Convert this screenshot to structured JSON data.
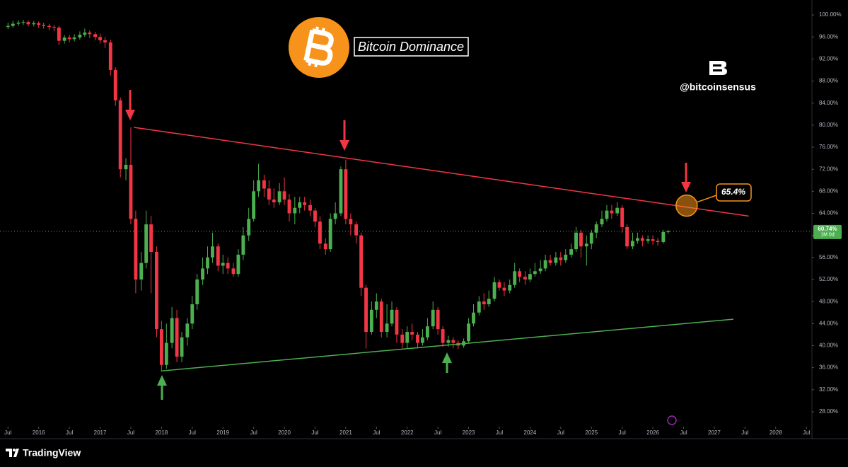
{
  "chart_data": {
    "type": "candlestick",
    "title": "Bitcoin Dominance",
    "annotations": [
      "@bitcoinsensus"
    ],
    "up_color": "#4caf50",
    "down_color": "#f23645",
    "xlim": [
      2015.37,
      2028.59
    ],
    "ylim": [
      25.3,
      102.7
    ],
    "log_scale": false,
    "grid": false,
    "xticks": [
      {
        "value": 2015.5,
        "label": "Jul"
      },
      2016,
      {
        "value": 2016.5,
        "label": "Jul"
      },
      2017,
      {
        "value": 2017.5,
        "label": "Jul"
      },
      2018,
      {
        "value": 2018.5,
        "label": "Jul"
      },
      2019,
      {
        "value": 2019.5,
        "label": "Jul"
      },
      2020,
      {
        "value": 2020.5,
        "label": "Jul"
      },
      2021,
      {
        "value": 2021.5,
        "label": "Jul"
      },
      2022,
      {
        "value": 2022.5,
        "label": "Jul"
      },
      2023,
      {
        "value": 2023.5,
        "label": "Jul"
      },
      2024,
      {
        "value": 2024.5,
        "label": "Jul"
      },
      2025,
      {
        "value": 2025.5,
        "label": "Jul"
      },
      2026,
      {
        "value": 2026.5,
        "label": "Jul"
      },
      2027,
      {
        "value": 2027.5,
        "label": "Jul"
      },
      2028,
      {
        "value": 2028.5,
        "label": "Jul"
      }
    ],
    "yticks": [
      {
        "value": 100,
        "label": "100.00%"
      },
      {
        "value": 96,
        "label": "96.00%"
      },
      {
        "value": 92,
        "label": "92.00%"
      },
      {
        "value": 88,
        "label": "88.00%"
      },
      {
        "value": 84,
        "label": "84.00%"
      },
      {
        "value": 80,
        "label": "80.00%"
      },
      {
        "value": 76,
        "label": "76.00%"
      },
      {
        "value": 72,
        "label": "72.00%"
      },
      {
        "value": 68,
        "label": "68.00%"
      },
      {
        "value": 64,
        "label": "64.00%"
      },
      {
        "value": 60,
        "label": "60.00%"
      },
      {
        "value": 56,
        "label": "56.00%"
      },
      {
        "value": 52,
        "label": "52.00%"
      },
      {
        "value": 48,
        "label": "48.00%"
      },
      {
        "value": 44,
        "label": "44.00%"
      },
      {
        "value": 40,
        "label": "40.00%"
      },
      {
        "value": 36,
        "label": "36.00%"
      },
      {
        "value": 32,
        "label": "32.00%"
      },
      {
        "value": 28,
        "label": "28.00%"
      }
    ],
    "x": [
      2015.5,
      2015.58,
      2015.67,
      2015.75,
      2015.83,
      2015.92,
      2016.0,
      2016.08,
      2016.17,
      2016.25,
      2016.33,
      2016.42,
      2016.5,
      2016.58,
      2016.67,
      2016.75,
      2016.83,
      2016.92,
      2017.0,
      2017.08,
      2017.17,
      2017.25,
      2017.33,
      2017.42,
      2017.5,
      2017.58,
      2017.67,
      2017.75,
      2017.83,
      2017.92,
      2018.0,
      2018.08,
      2018.17,
      2018.25,
      2018.33,
      2018.42,
      2018.5,
      2018.58,
      2018.67,
      2018.75,
      2018.83,
      2018.92,
      2019.0,
      2019.08,
      2019.17,
      2019.25,
      2019.33,
      2019.42,
      2019.5,
      2019.58,
      2019.67,
      2019.75,
      2019.83,
      2019.92,
      2020.0,
      2020.08,
      2020.17,
      2020.25,
      2020.33,
      2020.42,
      2020.5,
      2020.58,
      2020.67,
      2020.75,
      2020.83,
      2020.92,
      2021.0,
      2021.08,
      2021.17,
      2021.25,
      2021.33,
      2021.42,
      2021.5,
      2021.58,
      2021.67,
      2021.75,
      2021.83,
      2021.92,
      2022.0,
      2022.08,
      2022.17,
      2022.25,
      2022.33,
      2022.42,
      2022.5,
      2022.58,
      2022.67,
      2022.75,
      2022.83,
      2022.92,
      2023.0,
      2023.08,
      2023.17,
      2023.25,
      2023.33,
      2023.42,
      2023.5,
      2023.58,
      2023.67,
      2023.75,
      2023.83,
      2023.92,
      2024.0,
      2024.08,
      2024.17,
      2024.25,
      2024.33,
      2024.42,
      2024.5,
      2024.58,
      2024.67,
      2024.75,
      2024.83,
      2024.92,
      2025.0,
      2025.08,
      2025.17,
      2025.25,
      2025.33,
      2025.42,
      2025.5,
      2025.58,
      2025.67,
      2025.75,
      2025.83,
      2025.92,
      2026.0,
      2026.08,
      2026.17,
      2026.25
    ],
    "open": [
      97.8,
      98.0,
      98.4,
      98.6,
      98.7,
      98.3,
      98.5,
      98.2,
      98.0,
      97.8,
      97.7,
      95.3,
      95.9,
      95.6,
      95.9,
      96.4,
      96.8,
      96.5,
      96.0,
      95.4,
      95.0,
      90.0,
      84.5,
      72.0,
      72.8,
      63.0,
      52.0,
      55.0,
      62.0,
      57.0,
      43.0,
      36.5,
      40.5,
      45.0,
      38.0,
      41.5,
      44.0,
      47.5,
      52.0,
      54.0,
      56.0,
      58.0,
      54.5,
      55.0,
      54.0,
      53.0,
      56.5,
      60.0,
      63.0,
      68.0,
      70.0,
      68.5,
      66.5,
      66.0,
      68.0,
      66.5,
      64.0,
      65.0,
      66.0,
      65.5,
      64.5,
      62.5,
      58.5,
      57.5,
      63.0,
      64.0,
      72.0,
      63.0,
      62.0,
      60.0,
      50.5,
      42.5,
      46.5,
      48.0,
      42.5,
      44.0,
      46.5,
      42.0,
      40.5,
      42.5,
      42.0,
      40.5,
      41.5,
      43.5,
      46.5,
      43.0,
      40.5,
      41.0,
      40.5,
      40.0,
      40.8,
      44.0,
      46.0,
      48.0,
      47.5,
      48.5,
      51.5,
      50.5,
      50.0,
      51.0,
      53.5,
      52.5,
      52.0,
      53.0,
      53.5,
      54.0,
      55.5,
      55.0,
      56.0,
      55.5,
      56.5,
      57.5,
      60.5,
      58.0,
      58.5,
      60.5,
      62.0,
      63.0,
      64.5,
      64.0,
      65.0,
      61.5,
      58.0,
      59.0,
      59.5,
      59.0,
      59.3,
      59.0,
      58.8,
      60.6
    ],
    "high": [
      98.6,
      98.9,
      99.0,
      99.1,
      99.0,
      98.9,
      98.8,
      98.6,
      98.4,
      98.2,
      98.0,
      96.3,
      96.4,
      96.5,
      97.0,
      97.5,
      97.2,
      96.9,
      96.6,
      96.0,
      95.5,
      90.5,
      85.0,
      74.0,
      79.6,
      64.5,
      57.0,
      64.5,
      63.5,
      58.0,
      44.5,
      44.0,
      47.0,
      46.5,
      42.5,
      45.0,
      49.0,
      53.0,
      56.0,
      58.0,
      60.5,
      58.5,
      56.5,
      56.0,
      55.0,
      57.5,
      61.5,
      65.0,
      70.0,
      73.0,
      71.0,
      70.0,
      68.5,
      69.5,
      70.5,
      67.5,
      67.0,
      67.0,
      67.0,
      66.5,
      65.0,
      63.5,
      59.5,
      64.0,
      66.0,
      72.5,
      73.7,
      64.0,
      62.5,
      60.5,
      51.0,
      48.0,
      49.5,
      48.5,
      47.5,
      48.0,
      47.0,
      43.0,
      43.5,
      44.0,
      42.5,
      43.0,
      45.0,
      48.0,
      47.0,
      43.5,
      41.8,
      41.5,
      41.0,
      41.3,
      45.0,
      47.5,
      49.0,
      49.5,
      50.0,
      52.5,
      52.0,
      51.5,
      52.0,
      55.0,
      54.0,
      53.5,
      54.0,
      55.0,
      55.5,
      56.5,
      56.5,
      57.0,
      57.0,
      57.5,
      58.5,
      61.5,
      61.0,
      60.0,
      61.0,
      62.5,
      64.5,
      65.5,
      65.5,
      66.0,
      65.5,
      62.0,
      60.5,
      60.5,
      60.0,
      60.0,
      60.0,
      59.5,
      61.0,
      61.0
    ],
    "low": [
      97.4,
      97.7,
      98.0,
      98.2,
      97.9,
      97.9,
      97.6,
      97.5,
      97.2,
      97.0,
      94.5,
      94.8,
      95.0,
      95.2,
      95.5,
      96.0,
      95.8,
      95.4,
      94.8,
      94.0,
      89.0,
      83.5,
      70.5,
      70.0,
      62.0,
      49.5,
      50.0,
      54.0,
      49.5,
      41.5,
      35.4,
      35.8,
      39.5,
      37.0,
      37.0,
      40.0,
      43.0,
      46.5,
      51.0,
      53.0,
      55.0,
      53.5,
      53.0,
      53.0,
      52.5,
      52.5,
      55.5,
      59.0,
      62.5,
      67.0,
      67.0,
      65.5,
      65.0,
      65.5,
      65.5,
      62.5,
      62.0,
      64.0,
      64.5,
      63.5,
      61.5,
      57.5,
      56.5,
      57.0,
      62.0,
      63.5,
      62.0,
      60.0,
      58.5,
      49.0,
      39.5,
      42.0,
      45.0,
      41.5,
      41.5,
      43.5,
      40.5,
      39.5,
      39.5,
      41.0,
      39.5,
      40.0,
      41.0,
      43.0,
      42.0,
      39.8,
      39.8,
      39.5,
      39.4,
      39.6,
      40.5,
      43.5,
      45.5,
      46.5,
      47.0,
      48.0,
      50.0,
      49.0,
      49.5,
      50.5,
      51.5,
      51.0,
      51.5,
      52.5,
      53.0,
      53.5,
      54.5,
      54.5,
      54.5,
      55.0,
      56.0,
      57.0,
      56.0,
      54.5,
      57.5,
      59.5,
      61.5,
      62.5,
      63.0,
      63.5,
      60.5,
      57.5,
      57.5,
      58.5,
      58.0,
      58.5,
      58.3,
      58.2,
      58.5,
      60.3
    ],
    "close": [
      98.0,
      98.4,
      98.6,
      98.7,
      98.3,
      98.5,
      98.2,
      98.0,
      97.8,
      97.7,
      95.3,
      95.9,
      95.6,
      95.9,
      96.4,
      96.8,
      96.5,
      96.0,
      95.4,
      95.0,
      90.0,
      84.5,
      72.0,
      72.8,
      63.0,
      52.0,
      55.0,
      62.0,
      57.0,
      43.0,
      36.5,
      40.5,
      45.0,
      38.0,
      41.5,
      44.0,
      47.5,
      52.0,
      54.0,
      56.0,
      58.0,
      54.5,
      55.0,
      54.0,
      53.0,
      56.5,
      60.0,
      63.0,
      68.0,
      70.0,
      68.5,
      66.5,
      66.0,
      68.0,
      66.5,
      64.0,
      65.0,
      66.0,
      65.5,
      64.5,
      62.5,
      58.5,
      57.5,
      63.0,
      64.0,
      72.0,
      63.0,
      62.0,
      60.0,
      50.5,
      42.5,
      46.5,
      48.0,
      42.5,
      44.0,
      46.5,
      42.0,
      40.5,
      42.5,
      42.0,
      40.5,
      41.5,
      43.5,
      46.5,
      43.0,
      40.5,
      41.0,
      40.5,
      40.0,
      40.8,
      44.0,
      46.0,
      48.0,
      47.5,
      48.5,
      51.5,
      50.5,
      50.0,
      51.0,
      53.5,
      52.5,
      52.0,
      53.0,
      53.5,
      54.0,
      55.5,
      55.0,
      56.0,
      55.5,
      56.5,
      57.5,
      60.5,
      58.0,
      58.5,
      60.5,
      62.0,
      63.0,
      64.5,
      64.0,
      65.0,
      61.5,
      58.0,
      59.0,
      59.5,
      59.0,
      59.3,
      59.0,
      58.8,
      60.6,
      60.74
    ],
    "trendlines": [
      {
        "color": "#f23645",
        "x": [
          2017.55,
          2027.56
        ],
        "values": [
          79.6,
          63.5
        ]
      },
      {
        "color": "#4caf50",
        "x": [
          2017.99,
          2027.31
        ],
        "values": [
          35.4,
          44.8
        ]
      }
    ],
    "target": {
      "x": 2026.55,
      "value": 65.4,
      "label": "65.4%",
      "color": "#f7931a"
    },
    "last_label": {
      "value": 60.74,
      "label": "60.74%",
      "countdown": "1M 0d"
    }
  },
  "footer": {
    "brand": "TradingView"
  }
}
